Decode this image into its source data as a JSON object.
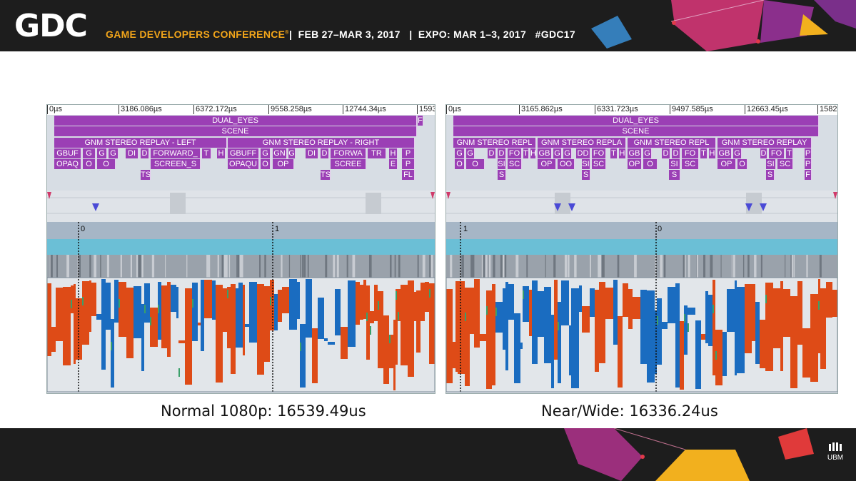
{
  "header": {
    "logo": "GDC",
    "conference": "GAME DEVELOPERS CONFERENCE",
    "registered": "®",
    "dates": "|  FEB 27–MAR 3, 2017   |  EXPO: MAR 1–3, 2017   #GDC17"
  },
  "footer": {
    "brand": "UBM"
  },
  "colors": {
    "track_purple": "#9b3fb5",
    "workload_orange": "#de4b17",
    "workload_blue": "#1a6cc0",
    "idle_grey": "#e2e6ea",
    "band_cyan": "#6bbfd6"
  },
  "left": {
    "caption": "Normal 1080p: 16539.49us",
    "ruler": [
      "0µs",
      "3186.086µs",
      "6372.172µs",
      "9558.258µs",
      "12744.34µs",
      "1593"
    ],
    "row1": {
      "main": "DUAL_EYES",
      "tail": "F"
    },
    "row2": "SCENE",
    "row3": [
      "GNM STEREO REPLAY - LEFT",
      "GNM STEREO REPLAY - RIGHT"
    ],
    "row4": [
      "GBUF",
      "G",
      "G",
      "G",
      "DI",
      "D",
      "FORWARD_",
      "T",
      "H",
      "GBUFF",
      "G",
      "GN",
      "G",
      "DI",
      "D",
      "FORWA",
      "TR",
      "H",
      "P"
    ],
    "row5": [
      "OPAQ",
      "O",
      "O",
      "OPAQU",
      "O",
      "OP",
      "SCREEN_S",
      "SCREE",
      "E",
      "P"
    ],
    "row6": [
      "TS",
      "TS",
      "FL"
    ],
    "frame_markers": [
      "0",
      "1"
    ]
  },
  "right": {
    "caption": "Near/Wide: 16336.24us",
    "ruler": [
      "0µs",
      "3165.862µs",
      "6331.723µs",
      "9497.585µs",
      "12663.45µs",
      "1582"
    ],
    "row1": {
      "main": "DUAL_EYES"
    },
    "row2": "SCENE",
    "row3": [
      "GNM STEREO REPL",
      "GNM STEREO REPLA",
      "GNM STEREO REPL",
      "GNM STEREO REPLAY"
    ],
    "row4": [
      "G",
      "G",
      "D",
      "D",
      "FO",
      "T",
      "H",
      "GB",
      "G",
      "G",
      "DD",
      "FO",
      "T",
      "H",
      "GB",
      "G",
      "D",
      "D",
      "FO",
      "T",
      "H",
      "GB",
      "G",
      "D",
      "FO",
      "T",
      "P"
    ],
    "row5": [
      "O",
      "O",
      "SI",
      "SC",
      "OP",
      "OO",
      "SI",
      "SC",
      "OP",
      "O",
      "SI",
      "SC",
      "OP",
      "O",
      "SI",
      "SC",
      "P"
    ],
    "row6": [
      "S",
      "S",
      "S",
      "S",
      "F"
    ],
    "frame_markers": [
      "1",
      "0"
    ]
  }
}
